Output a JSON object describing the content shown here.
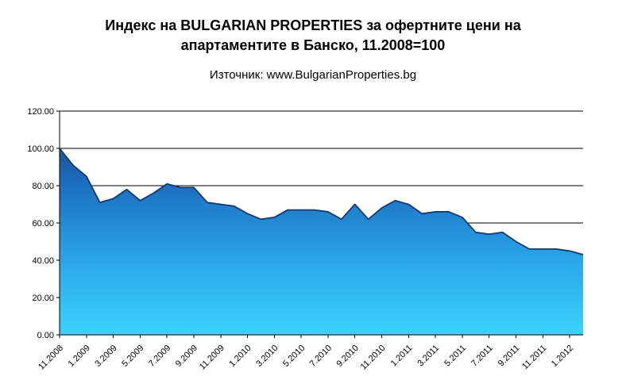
{
  "title_lines": [
    "Индекс на BULGARIAN PROPERTIES за офертните цени на",
    "апартаментите в Банско, 11.2008=100"
  ],
  "chart_data": {
    "type": "area",
    "title": "Индекс на BULGARIAN PROPERTIES за офертните цени на апартаментите в Банско, 11.2008=100",
    "subtitle": "Източник: www.BulgarianProperties.bg",
    "ylim": [
      0,
      120
    ],
    "y_tick_step": 20,
    "y_tick_labels": [
      "0.00",
      "20.00",
      "40.00",
      "60.00",
      "80.00",
      "100.00",
      "120.00"
    ],
    "grid": true,
    "legend": "none",
    "label_every": 2,
    "x_tick_labels": [
      "11.2008",
      "1.2009",
      "3.2009",
      "5.2009",
      "7.2009",
      "9.2009",
      "11.2009",
      "1.2010",
      "3.2010",
      "5.2010",
      "7.2010",
      "9.2010",
      "11.2010",
      "1.2011",
      "3.2011",
      "5.2011",
      "7.2011",
      "9.2011",
      "11.2011",
      "1.2012"
    ],
    "values": [
      100,
      91,
      85,
      71,
      73,
      78,
      72,
      76,
      81,
      79,
      79,
      71,
      70,
      69,
      65,
      62,
      63,
      67,
      67,
      67,
      66,
      62,
      70,
      62,
      68,
      72,
      70,
      65,
      66,
      66,
      63,
      55,
      54,
      55,
      50,
      46,
      46,
      46,
      45,
      43
    ],
    "colors": {
      "gradient": [
        "#123a78",
        "#1d6fc0",
        "#2aa6e8",
        "#3ad4fc"
      ],
      "line": "#0f3a72",
      "axis": "#000000"
    }
  }
}
